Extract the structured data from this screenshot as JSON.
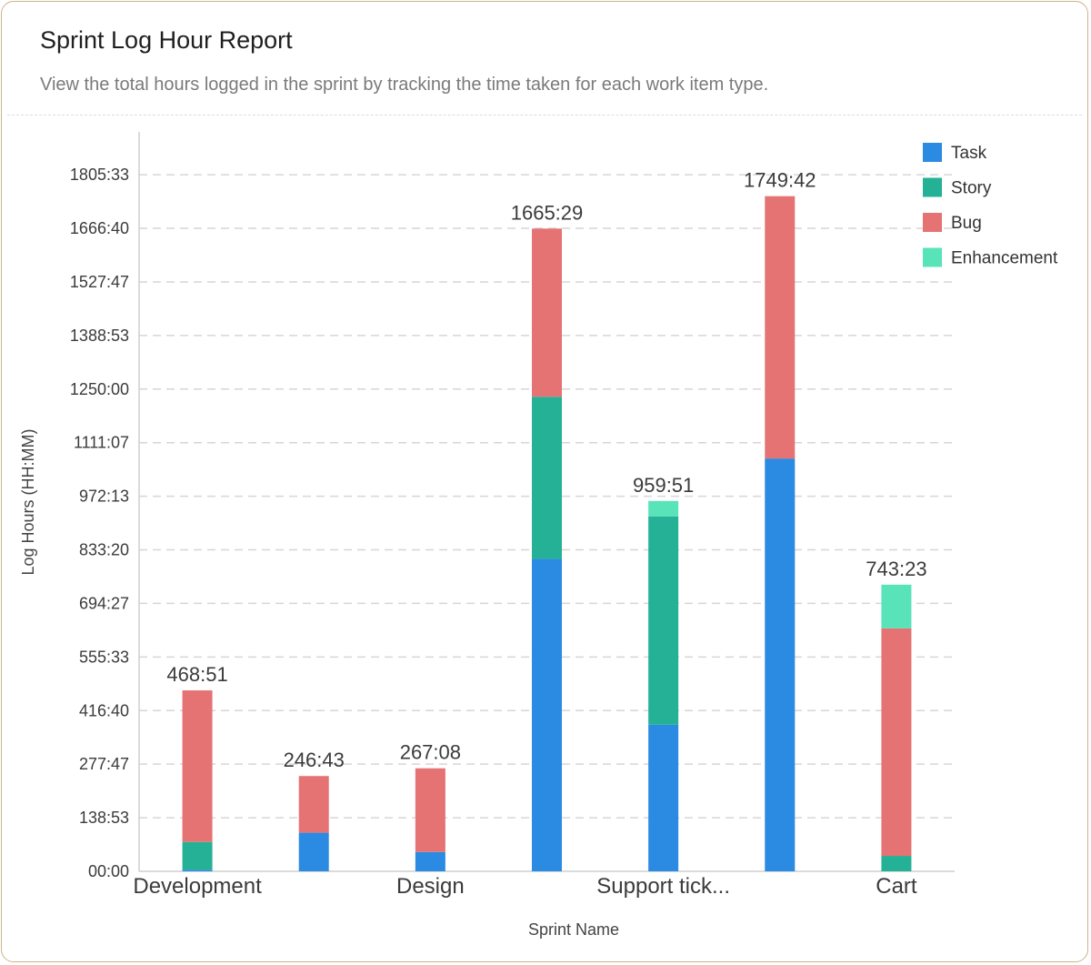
{
  "card": {
    "title": "Sprint Log Hour Report",
    "subtitle": "View the total hours logged in the sprint by tracking the time taken for each work item type."
  },
  "chart_data": {
    "type": "bar",
    "stacked": true,
    "xlabel": "Sprint Name",
    "ylabel": "Log Hours (HH:MM)",
    "ylim": [
      0,
      1916.67
    ],
    "yticks": [
      "00:00",
      "138:53",
      "277:47",
      "416:40",
      "555:33",
      "694:27",
      "833:20",
      "972:13",
      "1111:07",
      "1250:00",
      "1388:53",
      "1527:47",
      "1666:40",
      "1805:33"
    ],
    "ytick_values": [
      0,
      138.89,
      277.78,
      416.67,
      555.56,
      694.44,
      833.33,
      972.22,
      1111.11,
      1250.0,
      1388.89,
      1527.78,
      1666.67,
      1805.56
    ],
    "categories": [
      "Development",
      "",
      "Design",
      "",
      "Support tick...",
      "",
      "Cart"
    ],
    "category_labels_shown": [
      "Development",
      "Design",
      "Support tick...",
      "Cart"
    ],
    "series": [
      {
        "name": "Task",
        "color": "#2b8ae2",
        "values": [
          4,
          100,
          50,
          810,
          380,
          1070,
          0
        ]
      },
      {
        "name": "Story",
        "color": "#24b195",
        "values": [
          72,
          0,
          0,
          420,
          540,
          0,
          40
        ]
      },
      {
        "name": "Bug",
        "color": "#e57373",
        "values": [
          393,
          147,
          217,
          436,
          0,
          680,
          590
        ]
      },
      {
        "name": "Enhancement",
        "color": "#58e3b8",
        "values": [
          0,
          0,
          0,
          0,
          40,
          0,
          113
        ]
      }
    ],
    "totals": [
      "468:51",
      "246:43",
      "267:08",
      "1665:29",
      "959:51",
      "1749:42",
      "743:23"
    ],
    "legend": {
      "position": "top-right",
      "items": [
        "Task",
        "Story",
        "Bug",
        "Enhancement"
      ]
    },
    "grid": {
      "horizontal": true,
      "style": "dashed"
    }
  }
}
